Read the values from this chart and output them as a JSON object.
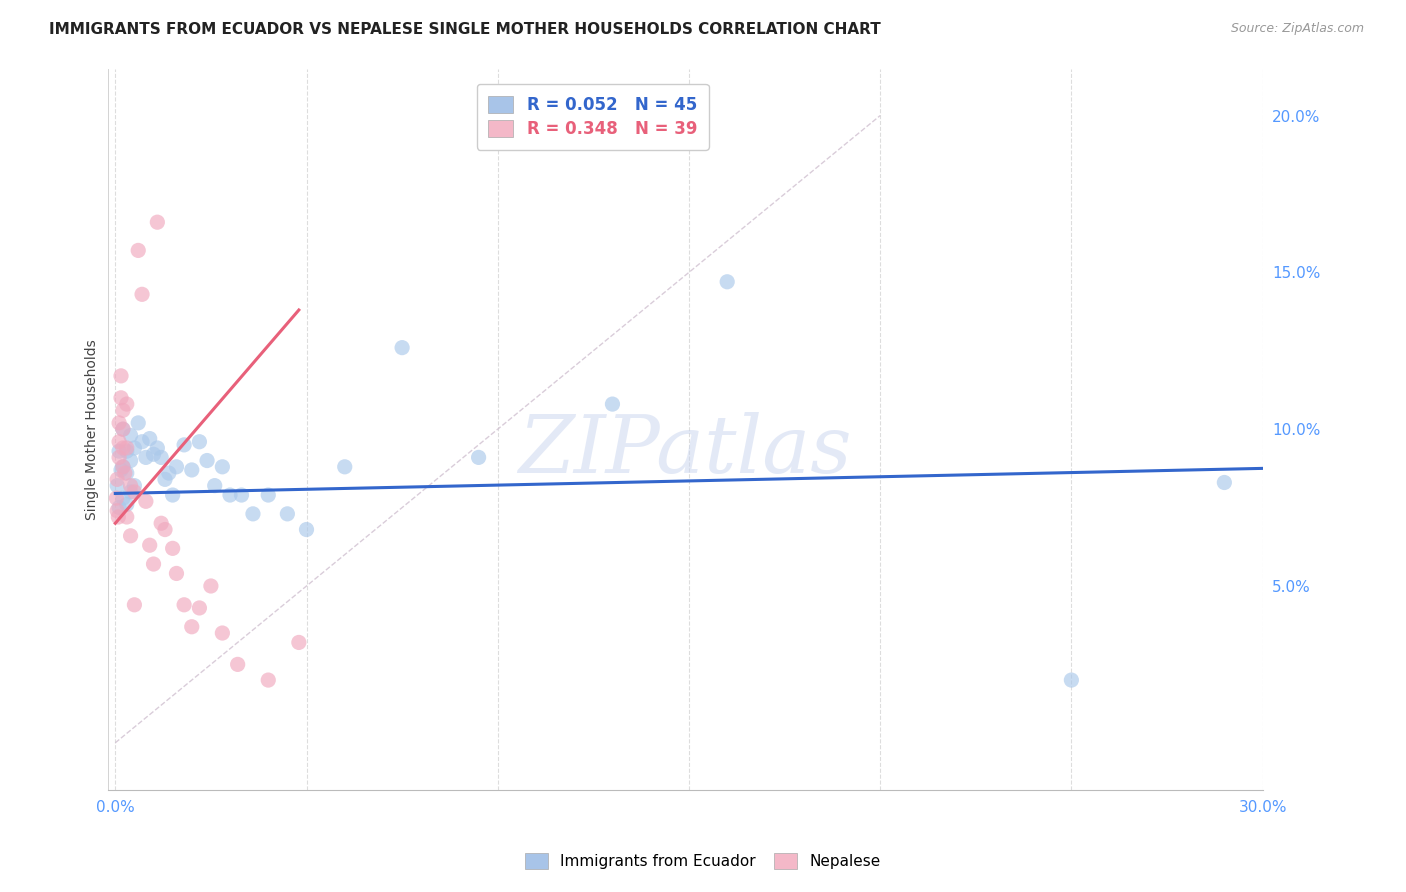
{
  "title": "IMMIGRANTS FROM ECUADOR VS NEPALESE SINGLE MOTHER HOUSEHOLDS CORRELATION CHART",
  "source": "Source: ZipAtlas.com",
  "ylabel": "Single Mother Households",
  "right_yticks": [
    "20.0%",
    "15.0%",
    "10.0%",
    "5.0%"
  ],
  "right_ytick_vals": [
    0.2,
    0.15,
    0.1,
    0.05
  ],
  "legend1_label": "R = 0.052   N = 45",
  "legend2_label": "R = 0.348   N = 39",
  "legend1_color": "#a8c4e8",
  "legend2_color": "#f4b8c8",
  "watermark": "ZIPatlas",
  "blue_scatter_x": [
    0.0005,
    0.001,
    0.001,
    0.0015,
    0.002,
    0.002,
    0.002,
    0.003,
    0.003,
    0.003,
    0.004,
    0.004,
    0.004,
    0.005,
    0.005,
    0.006,
    0.007,
    0.008,
    0.009,
    0.01,
    0.011,
    0.012,
    0.013,
    0.014,
    0.015,
    0.016,
    0.018,
    0.02,
    0.022,
    0.024,
    0.026,
    0.028,
    0.03,
    0.033,
    0.036,
    0.04,
    0.045,
    0.05,
    0.06,
    0.075,
    0.095,
    0.13,
    0.16,
    0.25,
    0.29
  ],
  "blue_scatter_y": [
    0.082,
    0.093,
    0.075,
    0.087,
    0.1,
    0.088,
    0.078,
    0.093,
    0.086,
    0.076,
    0.098,
    0.09,
    0.08,
    0.094,
    0.082,
    0.102,
    0.096,
    0.091,
    0.097,
    0.092,
    0.094,
    0.091,
    0.084,
    0.086,
    0.079,
    0.088,
    0.095,
    0.087,
    0.096,
    0.09,
    0.082,
    0.088,
    0.079,
    0.079,
    0.073,
    0.079,
    0.073,
    0.068,
    0.088,
    0.126,
    0.091,
    0.108,
    0.147,
    0.02,
    0.083
  ],
  "pink_scatter_x": [
    0.0003,
    0.0005,
    0.0005,
    0.0008,
    0.001,
    0.001,
    0.001,
    0.0015,
    0.0015,
    0.002,
    0.002,
    0.002,
    0.002,
    0.0025,
    0.003,
    0.003,
    0.003,
    0.004,
    0.004,
    0.005,
    0.005,
    0.006,
    0.007,
    0.008,
    0.009,
    0.01,
    0.011,
    0.012,
    0.013,
    0.015,
    0.016,
    0.018,
    0.02,
    0.022,
    0.025,
    0.028,
    0.032,
    0.04,
    0.048
  ],
  "pink_scatter_y": [
    0.078,
    0.084,
    0.074,
    0.072,
    0.091,
    0.096,
    0.102,
    0.11,
    0.117,
    0.094,
    0.1,
    0.106,
    0.088,
    0.086,
    0.108,
    0.094,
    0.072,
    0.082,
    0.066,
    0.08,
    0.044,
    0.157,
    0.143,
    0.077,
    0.063,
    0.057,
    0.166,
    0.07,
    0.068,
    0.062,
    0.054,
    0.044,
    0.037,
    0.043,
    0.05,
    0.035,
    0.025,
    0.02,
    0.032
  ],
  "blue_line_x": [
    0.0,
    0.3
  ],
  "blue_line_y": [
    0.0795,
    0.0875
  ],
  "pink_line_x": [
    0.0,
    0.048
  ],
  "pink_line_y": [
    0.07,
    0.138
  ],
  "diag_line_x": [
    0.0,
    0.2
  ],
  "diag_line_y": [
    0.0,
    0.2
  ],
  "xlim": [
    -0.002,
    0.3
  ],
  "ylim": [
    -0.015,
    0.215
  ],
  "background_color": "#ffffff",
  "grid_color": "#dddddd",
  "title_fontsize": 11,
  "axis_label_color": "#5599ff",
  "scatter_size": 120,
  "blue_dot_color": "#aac8ea",
  "pink_dot_color": "#f0a8be",
  "blue_line_color": "#3366cc",
  "pink_line_color": "#e8607a",
  "diag_line_color": "#d0c0d0"
}
